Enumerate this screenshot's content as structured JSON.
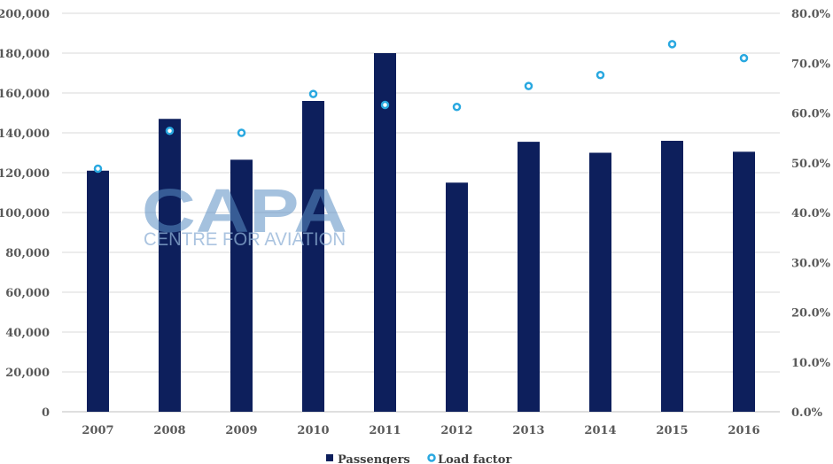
{
  "chart_data": {
    "type": "bar",
    "categories": [
      "2007",
      "2008",
      "2009",
      "2010",
      "2011",
      "2012",
      "2013",
      "2014",
      "2015",
      "2016"
    ],
    "series": [
      {
        "name": "Passengers",
        "type": "bar",
        "axis": "left",
        "color": "#0d1f5c",
        "values": [
          121000,
          147000,
          126500,
          156000,
          180000,
          115000,
          135500,
          130000,
          136000,
          130500
        ]
      },
      {
        "name": "Load factor",
        "type": "scatter",
        "axis": "right",
        "color": "#29a8e0",
        "values": [
          48.8,
          56.4,
          56.0,
          63.8,
          61.6,
          61.2,
          65.4,
          67.6,
          73.8,
          71.0
        ]
      }
    ],
    "y_left": {
      "ylim": [
        0,
        200000
      ],
      "ticks": [
        "0",
        "20,000",
        "40,000",
        "60,000",
        "80,000",
        "100,000",
        "120,000",
        "140,000",
        "160,000",
        "180,000",
        "200,000"
      ]
    },
    "y_right": {
      "ylim": [
        0,
        80
      ],
      "ticks": [
        "0.0%",
        "10.0%",
        "20.0%",
        "30.0%",
        "40.0%",
        "50.0%",
        "60.0%",
        "70.0%",
        "80.0%"
      ]
    },
    "grid": true,
    "legend": "bottom-center"
  },
  "watermark": {
    "logo": "CAPA",
    "tagline": "CENTRE FOR AVIATION"
  }
}
